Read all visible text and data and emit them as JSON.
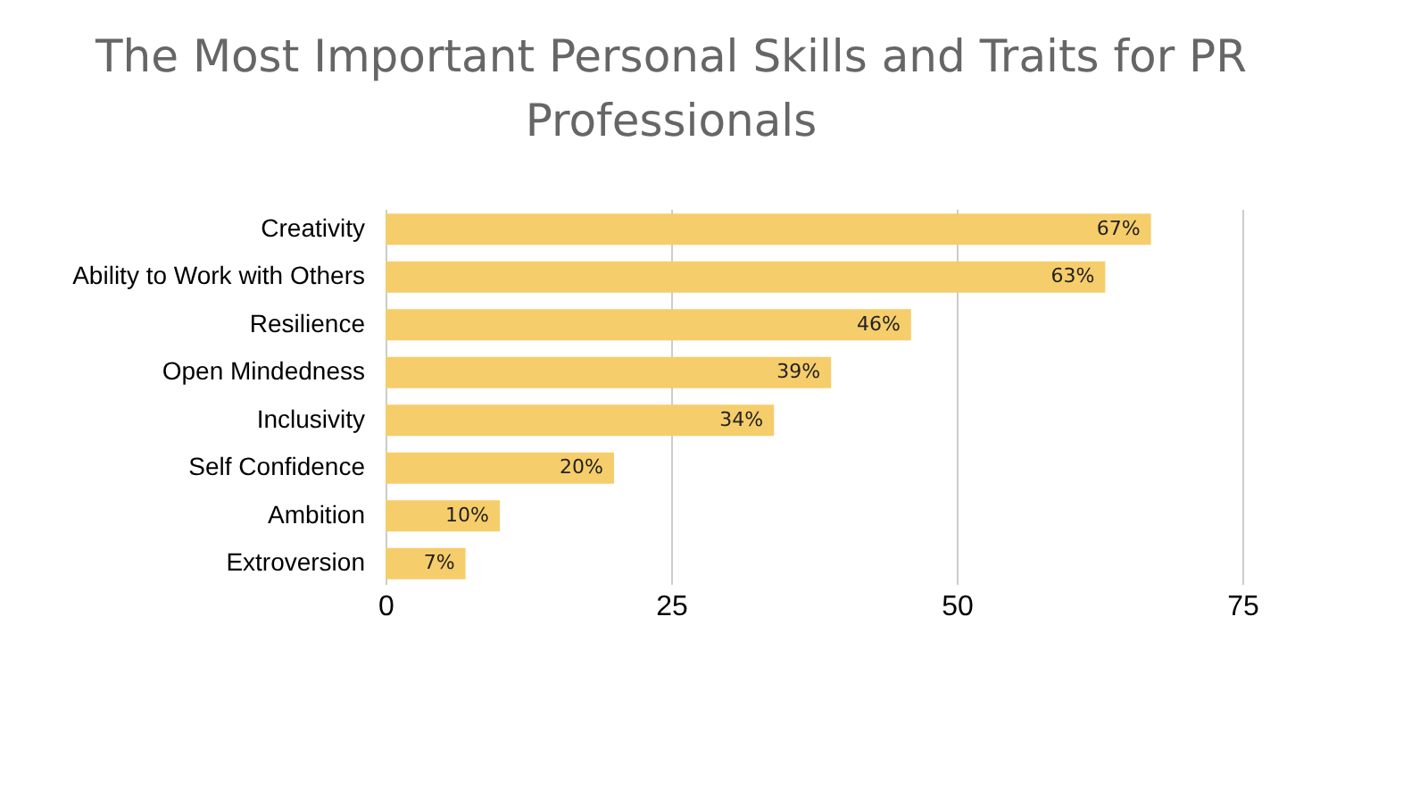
{
  "chart_data": {
    "type": "bar",
    "orientation": "horizontal",
    "title": "The Most Important Personal Skills and Traits for PR Professionals",
    "categories": [
      "Creativity",
      "Ability to Work with Others",
      "Resilience",
      "Open Mindedness",
      "Inclusivity",
      "Self Confidence",
      "Ambition",
      "Extroversion"
    ],
    "values": [
      67,
      63,
      46,
      39,
      34,
      20,
      10,
      7
    ],
    "value_labels": [
      "67%",
      "63%",
      "46%",
      "39%",
      "34%",
      "20%",
      "10%",
      "7%"
    ],
    "color": "#f6cd6b",
    "xlim": [
      0,
      75
    ],
    "xticks": [
      0,
      25,
      50,
      75
    ],
    "grid": "x"
  }
}
